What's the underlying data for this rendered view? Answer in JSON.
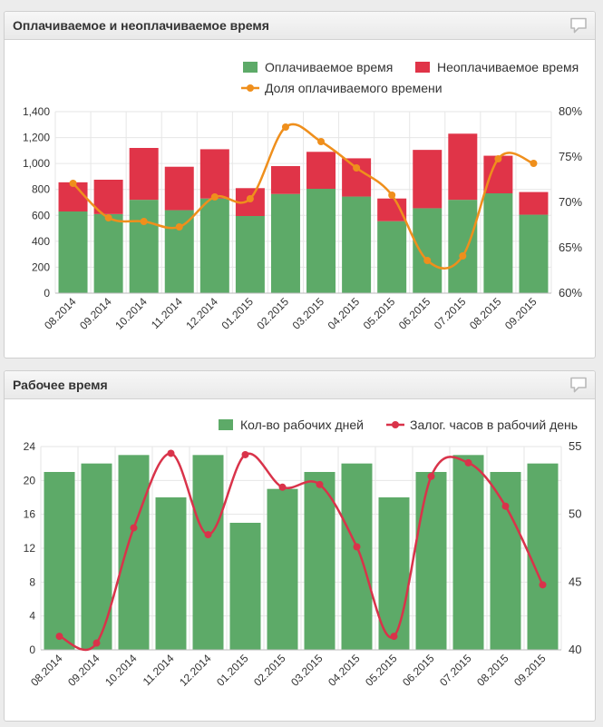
{
  "colors": {
    "green": "#5daa68",
    "red": "#e03448",
    "orange": "#ef8f1c",
    "crimson": "#d9334a",
    "grid": "#e6e6e6",
    "text": "#333333"
  },
  "chart_data": [
    {
      "type": "bar",
      "stacked": true,
      "title": "Оплачиваемое и неоплачиваемое время",
      "categories": [
        "08.2014",
        "09.2014",
        "10.2014",
        "11.2014",
        "12.2014",
        "01.2015",
        "02.2015",
        "03.2015",
        "04.2015",
        "05.2015",
        "06.2015",
        "07.2015",
        "08.2015",
        "09.2015"
      ],
      "series": [
        {
          "name": "Оплачиваемое время",
          "axis": "left",
          "values": [
            630,
            610,
            720,
            640,
            730,
            595,
            765,
            805,
            745,
            555,
            655,
            720,
            770,
            605
          ]
        },
        {
          "name": "Неоплачиваемое время",
          "axis": "left",
          "values": [
            225,
            265,
            400,
            335,
            380,
            215,
            215,
            285,
            295,
            175,
            450,
            510,
            290,
            175
          ]
        },
        {
          "name": "Доля оплачиваемого времени",
          "type": "line",
          "axis": "right",
          "values": [
            72.1,
            68.3,
            67.9,
            67.3,
            70.6,
            70.4,
            78.3,
            76.7,
            73.8,
            70.8,
            63.6,
            64.1,
            74.8,
            74.3
          ]
        }
      ],
      "ylim_left": [
        0,
        1400
      ],
      "yticks_left": [
        "0",
        "200",
        "400",
        "600",
        "800",
        "1,000",
        "1,200",
        "1,400"
      ],
      "ylim_right": [
        60,
        80
      ],
      "yticks_right": [
        "60%",
        "65%",
        "70%",
        "75%",
        "80%"
      ],
      "legend_position": "top-right"
    },
    {
      "type": "bar",
      "title": "Рабочее время",
      "categories": [
        "08.2014",
        "09.2014",
        "10.2014",
        "11.2014",
        "12.2014",
        "01.2015",
        "02.2015",
        "03.2015",
        "04.2015",
        "05.2015",
        "06.2015",
        "07.2015",
        "08.2015",
        "09.2015"
      ],
      "series": [
        {
          "name": "Кол-во рабочих дней",
          "axis": "left",
          "values": [
            21,
            22,
            23,
            18,
            23,
            15,
            19,
            21,
            22,
            18,
            21,
            23,
            21,
            22
          ]
        },
        {
          "name": "Залог. часов в рабочий день",
          "type": "line",
          "axis": "right",
          "values": [
            41.0,
            40.5,
            49.0,
            54.5,
            48.5,
            54.4,
            52.0,
            52.2,
            47.6,
            41.0,
            52.8,
            53.8,
            50.6,
            44.8
          ]
        }
      ],
      "ylim_left": [
        0,
        24
      ],
      "yticks_left": [
        "0",
        "4",
        "8",
        "12",
        "16",
        "20",
        "24"
      ],
      "ylim_right": [
        40,
        55
      ],
      "yticks_right": [
        "40",
        "45",
        "50",
        "55"
      ],
      "legend_position": "top-right"
    }
  ]
}
